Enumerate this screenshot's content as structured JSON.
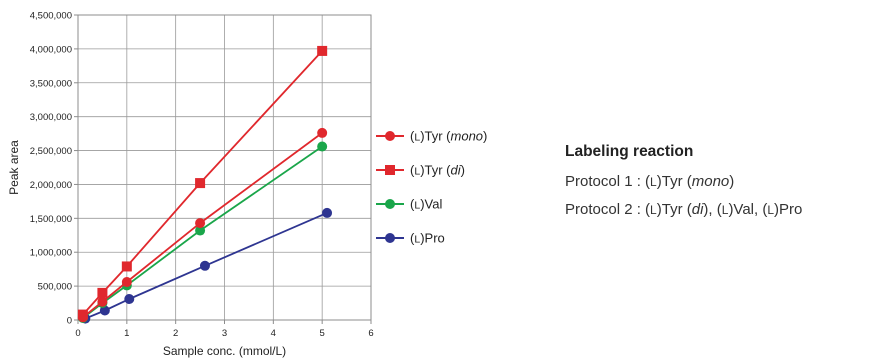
{
  "chart_data": {
    "type": "line",
    "xlabel": "Sample conc. (mmol/L)",
    "ylabel": "Peak area",
    "xlim": [
      0,
      6
    ],
    "ylim": [
      0,
      4500000
    ],
    "x_ticks": [
      "0",
      "1",
      "2",
      "3",
      "4",
      "5",
      "6"
    ],
    "y_ticks": [
      "0",
      "500,000",
      "1,000,000",
      "1,500,000",
      "2,000,000",
      "2,500,000",
      "3,000,000",
      "3,500,000",
      "4,000,000",
      "4,500,000"
    ],
    "grid": true,
    "legend_position": "right",
    "series": [
      {
        "name": "(L)Tyr (mono)",
        "label_parts": {
          "open": "(",
          "sc": "L",
          "close": ")Tyr (",
          "italic": "mono",
          "end": ")"
        },
        "color": "#e0282d",
        "marker": "circle",
        "points": [
          [
            0.1,
            40000
          ],
          [
            0.5,
            270000
          ],
          [
            1.0,
            560000
          ],
          [
            2.5,
            1430000
          ],
          [
            5.0,
            2760000
          ]
        ]
      },
      {
        "name": "(L)Tyr (di)",
        "label_parts": {
          "open": "(",
          "sc": "L",
          "close": ")Tyr (",
          "italic": "di",
          "end": ")"
        },
        "color": "#e0282d",
        "marker": "square",
        "points": [
          [
            0.1,
            80000
          ],
          [
            0.5,
            400000
          ],
          [
            1.0,
            790000
          ],
          [
            2.5,
            2020000
          ],
          [
            5.0,
            3970000
          ]
        ]
      },
      {
        "name": "(L)Val",
        "label_parts": {
          "open": "(",
          "sc": "L",
          "close": ")Val",
          "italic": "",
          "end": ""
        },
        "color": "#1aa64a",
        "marker": "circle",
        "points": [
          [
            0.1,
            30000
          ],
          [
            0.5,
            250000
          ],
          [
            1.0,
            510000
          ],
          [
            2.5,
            1320000
          ],
          [
            5.0,
            2560000
          ]
        ]
      },
      {
        "name": "(L)Pro",
        "label_parts": {
          "open": "(",
          "sc": "L",
          "close": ")Pro",
          "italic": "",
          "end": ""
        },
        "color": "#2e3591",
        "marker": "circle",
        "points": [
          [
            0.15,
            20000
          ],
          [
            0.55,
            140000
          ],
          [
            1.05,
            310000
          ],
          [
            2.6,
            800000
          ],
          [
            5.1,
            1580000
          ]
        ]
      }
    ]
  },
  "side_panel": {
    "heading": "Labeling reaction",
    "protocol1": {
      "prefix": "Protocol 1 : (",
      "sc": "L",
      "mid": ")Tyr (",
      "italic": "mono",
      "end": ")"
    },
    "protocol2": {
      "prefix": "Protocol 2 : (",
      "sc1": "L",
      "mid1": ")Tyr (",
      "italic": "di",
      "mid2": "), (",
      "sc2": "L",
      "mid3": ")Val, (",
      "sc3": "L",
      "end": ")Pro"
    }
  }
}
